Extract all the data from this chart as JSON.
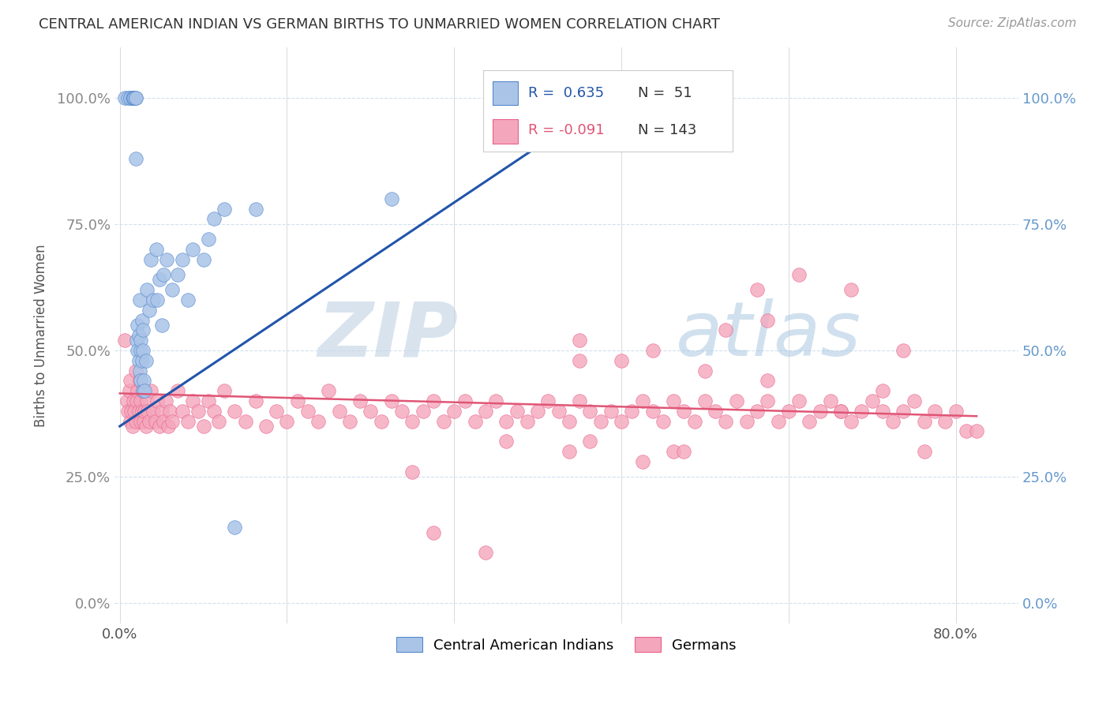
{
  "title": "CENTRAL AMERICAN INDIAN VS GERMAN BIRTHS TO UNMARRIED WOMEN CORRELATION CHART",
  "source": "Source: ZipAtlas.com",
  "ylabel": "Births to Unmarried Women",
  "ytick_vals": [
    0.0,
    0.25,
    0.5,
    0.75,
    1.0
  ],
  "ytick_labels": [
    "0.0%",
    "25.0%",
    "50.0%",
    "75.0%",
    "100.0%"
  ],
  "xtick_vals": [
    0.0,
    0.8
  ],
  "xtick_labels": [
    "0.0%",
    "80.0%"
  ],
  "xlim": [
    -0.005,
    0.86
  ],
  "ylim": [
    -0.04,
    1.1
  ],
  "legend_blue_R": "0.635",
  "legend_blue_N": "51",
  "legend_pink_R": "-0.091",
  "legend_pink_N": "143",
  "blue_color": "#aac4e8",
  "pink_color": "#f4a7bc",
  "blue_edge_color": "#5588cc",
  "pink_edge_color": "#e8608a",
  "blue_line_color": "#2255aa",
  "pink_line_color": "#e05575",
  "watermark_zip": "ZIP",
  "watermark_atlas": "atlas",
  "blue_x": [
    0.005,
    0.008,
    0.01,
    0.01,
    0.012,
    0.013,
    0.013,
    0.014,
    0.015,
    0.015,
    0.015,
    0.016,
    0.017,
    0.017,
    0.018,
    0.018,
    0.019,
    0.019,
    0.02,
    0.02,
    0.02,
    0.021,
    0.021,
    0.022,
    0.022,
    0.022,
    0.023,
    0.024,
    0.025,
    0.026,
    0.028,
    0.03,
    0.032,
    0.035,
    0.036,
    0.038,
    0.04,
    0.042,
    0.045,
    0.05,
    0.055,
    0.06,
    0.065,
    0.07,
    0.08,
    0.085,
    0.09,
    0.1,
    0.11,
    0.13,
    0.26
  ],
  "blue_y": [
    1.0,
    1.0,
    1.0,
    1.0,
    1.0,
    1.0,
    1.0,
    1.0,
    1.0,
    1.0,
    0.88,
    0.52,
    0.5,
    0.55,
    0.48,
    0.53,
    0.46,
    0.6,
    0.44,
    0.5,
    0.52,
    0.48,
    0.56,
    0.42,
    0.5,
    0.54,
    0.44,
    0.42,
    0.48,
    0.62,
    0.58,
    0.68,
    0.6,
    0.7,
    0.6,
    0.64,
    0.55,
    0.65,
    0.68,
    0.62,
    0.65,
    0.68,
    0.6,
    0.7,
    0.68,
    0.72,
    0.76,
    0.78,
    0.15,
    0.78,
    0.8
  ],
  "pink_x": [
    0.005,
    0.007,
    0.008,
    0.009,
    0.01,
    0.01,
    0.011,
    0.012,
    0.013,
    0.014,
    0.015,
    0.015,
    0.016,
    0.017,
    0.018,
    0.019,
    0.02,
    0.02,
    0.021,
    0.022,
    0.023,
    0.024,
    0.025,
    0.026,
    0.027,
    0.028,
    0.03,
    0.032,
    0.034,
    0.036,
    0.038,
    0.04,
    0.042,
    0.044,
    0.046,
    0.048,
    0.05,
    0.055,
    0.06,
    0.065,
    0.07,
    0.075,
    0.08,
    0.085,
    0.09,
    0.095,
    0.1,
    0.11,
    0.12,
    0.13,
    0.14,
    0.15,
    0.16,
    0.17,
    0.18,
    0.19,
    0.2,
    0.21,
    0.22,
    0.23,
    0.24,
    0.25,
    0.26,
    0.27,
    0.28,
    0.29,
    0.3,
    0.31,
    0.32,
    0.33,
    0.34,
    0.35,
    0.36,
    0.37,
    0.38,
    0.39,
    0.4,
    0.41,
    0.42,
    0.43,
    0.44,
    0.45,
    0.46,
    0.47,
    0.48,
    0.49,
    0.5,
    0.51,
    0.52,
    0.53,
    0.54,
    0.55,
    0.56,
    0.57,
    0.58,
    0.59,
    0.6,
    0.61,
    0.62,
    0.63,
    0.64,
    0.65,
    0.66,
    0.67,
    0.68,
    0.69,
    0.7,
    0.71,
    0.72,
    0.73,
    0.74,
    0.75,
    0.76,
    0.77,
    0.78,
    0.79,
    0.8,
    0.81,
    0.82,
    0.53,
    0.54,
    0.37,
    0.5,
    0.43,
    0.61,
    0.65,
    0.7,
    0.75,
    0.62,
    0.58,
    0.44,
    0.48,
    0.51,
    0.56,
    0.44,
    0.69,
    0.73,
    0.62,
    0.45,
    0.77,
    0.35,
    0.3,
    0.28
  ],
  "pink_y": [
    0.52,
    0.4,
    0.38,
    0.42,
    0.36,
    0.44,
    0.38,
    0.35,
    0.4,
    0.38,
    0.46,
    0.36,
    0.4,
    0.42,
    0.38,
    0.44,
    0.36,
    0.4,
    0.38,
    0.42,
    0.36,
    0.38,
    0.35,
    0.4,
    0.38,
    0.36,
    0.42,
    0.38,
    0.36,
    0.4,
    0.35,
    0.38,
    0.36,
    0.4,
    0.35,
    0.38,
    0.36,
    0.42,
    0.38,
    0.36,
    0.4,
    0.38,
    0.35,
    0.4,
    0.38,
    0.36,
    0.42,
    0.38,
    0.36,
    0.4,
    0.35,
    0.38,
    0.36,
    0.4,
    0.38,
    0.36,
    0.42,
    0.38,
    0.36,
    0.4,
    0.38,
    0.36,
    0.4,
    0.38,
    0.36,
    0.38,
    0.4,
    0.36,
    0.38,
    0.4,
    0.36,
    0.38,
    0.4,
    0.36,
    0.38,
    0.36,
    0.38,
    0.4,
    0.38,
    0.36,
    0.4,
    0.38,
    0.36,
    0.38,
    0.36,
    0.38,
    0.4,
    0.38,
    0.36,
    0.4,
    0.38,
    0.36,
    0.4,
    0.38,
    0.36,
    0.4,
    0.36,
    0.38,
    0.4,
    0.36,
    0.38,
    0.4,
    0.36,
    0.38,
    0.4,
    0.38,
    0.36,
    0.38,
    0.4,
    0.38,
    0.36,
    0.38,
    0.4,
    0.36,
    0.38,
    0.36,
    0.38,
    0.34,
    0.34,
    0.3,
    0.3,
    0.32,
    0.28,
    0.3,
    0.62,
    0.65,
    0.62,
    0.5,
    0.56,
    0.54,
    0.52,
    0.48,
    0.5,
    0.46,
    0.48,
    0.38,
    0.42,
    0.44,
    0.32,
    0.3,
    0.1,
    0.14,
    0.26
  ]
}
